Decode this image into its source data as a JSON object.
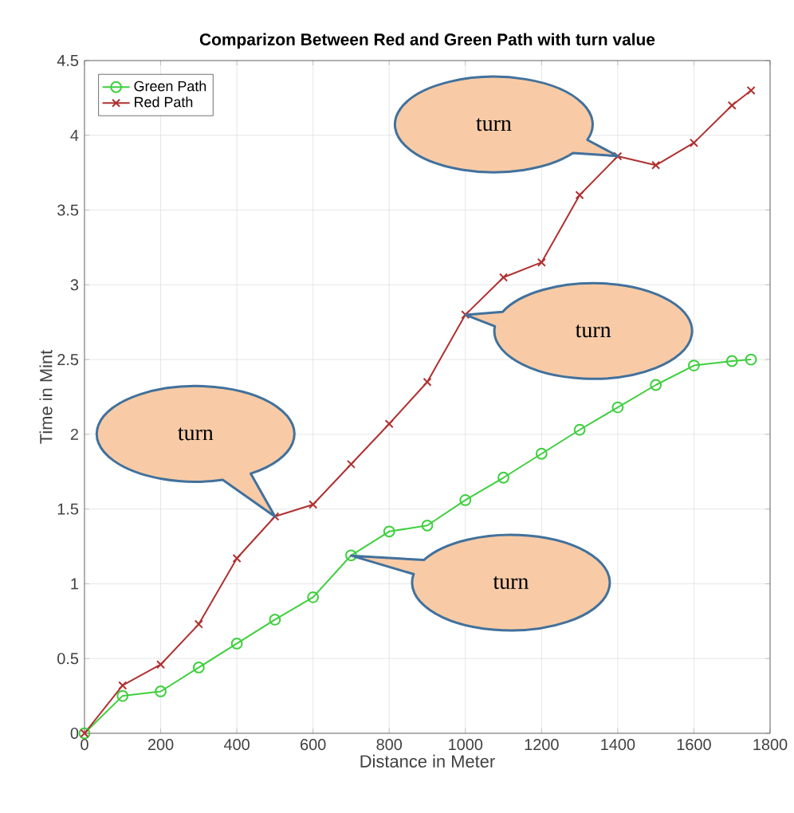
{
  "chart_data": {
    "type": "line",
    "title": "Comparizon Between Red and Green Path with turn value",
    "xlabel": "Distance in Meter",
    "ylabel": "Time in Mint",
    "x": [
      0,
      100,
      200,
      300,
      400,
      500,
      600,
      700,
      800,
      900,
      1000,
      1100,
      1200,
      1300,
      1400,
      1500,
      1600,
      1700,
      1750
    ],
    "series": [
      {
        "name": "Green Path",
        "color": "#3ecf3e",
        "marker": "circle",
        "values": [
          0,
          0.25,
          0.28,
          0.44,
          0.6,
          0.76,
          0.91,
          1.19,
          1.35,
          1.39,
          1.56,
          1.71,
          1.87,
          2.03,
          2.18,
          2.33,
          2.46,
          2.49,
          2.5
        ]
      },
      {
        "name": "Red Path",
        "color": "#b03030",
        "marker": "cross",
        "values": [
          0,
          0.32,
          0.46,
          0.73,
          1.17,
          1.45,
          1.53,
          1.8,
          2.07,
          2.35,
          2.8,
          3.05,
          3.15,
          3.6,
          3.86,
          3.8,
          3.95,
          4.2,
          4.3
        ]
      }
    ],
    "xlim": [
      0,
      1800
    ],
    "xticks": [
      0,
      200,
      400,
      600,
      800,
      1000,
      1200,
      1400,
      1600,
      1800
    ],
    "ylim": [
      0,
      4.5
    ],
    "yticks": [
      0,
      0.5,
      1,
      1.5,
      2,
      2.5,
      3,
      3.5,
      4,
      4.5
    ],
    "grid": true,
    "legend": "top left",
    "annotations": [
      "turn",
      "turn",
      "turn",
      "turn"
    ]
  }
}
